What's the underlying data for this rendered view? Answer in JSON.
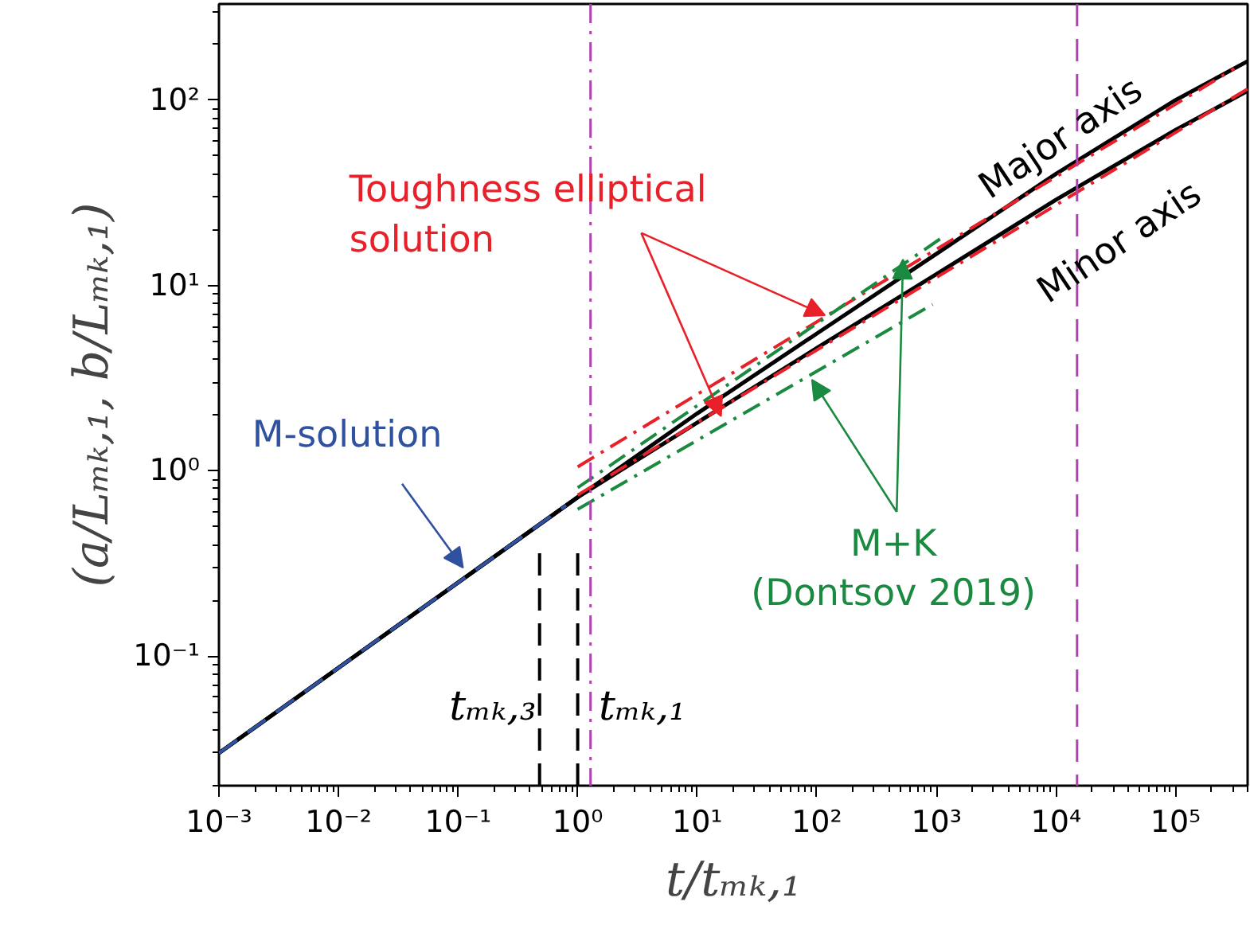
{
  "chart_data": {
    "type": "line",
    "xlabel": "t/tₘₖ,₁",
    "ylabel": "(a/Lₘₖ,₁, b/Lₘₖ,₁)",
    "log": "xy",
    "grid": false,
    "xlim": [
      0.001,
      400000
    ],
    "ylim": [
      0.02,
      330
    ],
    "xticks": [
      {
        "value": 0.001,
        "label": "10⁻³"
      },
      {
        "value": 0.01,
        "label": "10⁻²"
      },
      {
        "value": 0.1,
        "label": "10⁻¹"
      },
      {
        "value": 1,
        "label": "10⁰"
      },
      {
        "value": 10,
        "label": "10¹"
      },
      {
        "value": 100,
        "label": "10²"
      },
      {
        "value": 1000,
        "label": "10³"
      },
      {
        "value": 10000,
        "label": "10⁴"
      },
      {
        "value": 100000,
        "label": "10⁵"
      }
    ],
    "yticks": [
      {
        "value": 0.1,
        "label": "10⁻¹"
      },
      {
        "value": 1,
        "label": "10⁰"
      },
      {
        "value": 10,
        "label": "10¹"
      },
      {
        "value": 100,
        "label": "10²"
      }
    ],
    "series": [
      {
        "color": "#000000",
        "line_style": "solid",
        "x": [
          0.001,
          1,
          10,
          100,
          1000,
          10000,
          100000,
          400000
        ],
        "values": [
          0.03,
          0.72,
          2.04,
          5.5,
          14.8,
          40,
          100,
          162
        ]
      },
      {
        "color": "#000000",
        "line_style": "solid",
        "x": [
          0.001,
          1,
          10,
          100,
          1000,
          10000,
          100000,
          400000
        ],
        "values": [
          0.03,
          0.72,
          1.82,
          4.6,
          11.5,
          29,
          69,
          112
        ]
      },
      {
        "color": "#3050a0",
        "line_style": "dashed",
        "x": [
          0.001,
          0.8
        ],
        "values": [
          0.03,
          0.65
        ]
      },
      {
        "color": "#e8202a",
        "line_style": "dashdot",
        "x": [
          1,
          310000
        ],
        "values": [
          1.05,
          148
        ]
      },
      {
        "color": "#e8202a",
        "line_style": "dashdot",
        "x": [
          1,
          400000
        ],
        "values": [
          0.74,
          115
        ]
      },
      {
        "color": "#1a8a40",
        "line_style": "dashdot",
        "x": [
          1,
          1070
        ],
        "values": [
          0.81,
          17.8
        ]
      },
      {
        "color": "#1a8a40",
        "line_style": "dashdot",
        "x": [
          1,
          930
        ],
        "values": [
          0.62,
          7.9
        ]
      },
      {
        "color": "#000000",
        "line_style": "dashed",
        "x": [
          0.48,
          0.48
        ],
        "values": [
          0.02,
          0.37
        ]
      },
      {
        "color": "#000000",
        "line_style": "dashed",
        "x": [
          1,
          1
        ],
        "values": [
          0.02,
          0.37
        ]
      }
    ],
    "ref_lines": [
      {
        "axis": "x",
        "value": 1.28,
        "color": "#b040b0",
        "line_style": "dashdot"
      },
      {
        "axis": "x",
        "value": 15000,
        "color": "#b040b0",
        "line_style": "dashed"
      }
    ],
    "annotations": [
      {
        "text": "Toughness elliptical\nsolution",
        "x": 117,
        "y": 6.9
      },
      {
        "text": "M-solution",
        "x": 0.11,
        "y": 0.3
      },
      {
        "text": "M+K\n(Dontsov 2019)",
        "x": 525,
        "y": 13.8
      },
      "Major axis",
      "Minor axis",
      "tₘₖ,₃",
      "tₘₖ,₁"
    ]
  }
}
